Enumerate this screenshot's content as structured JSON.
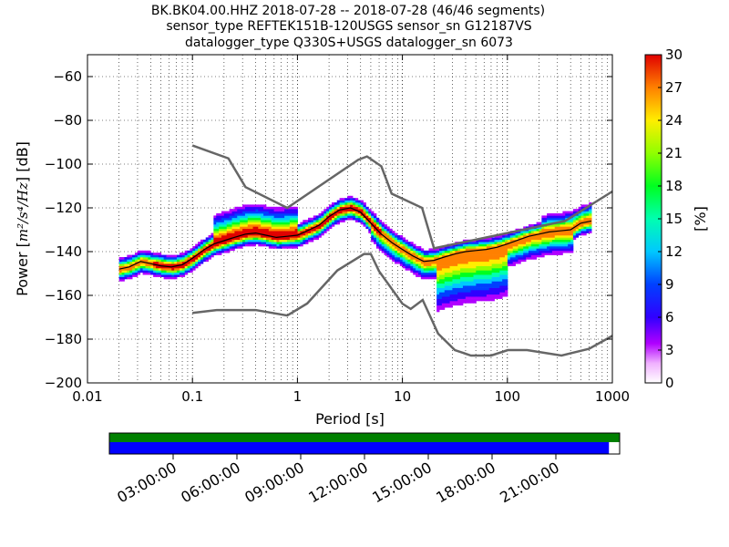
{
  "title_lines": [
    "BK.BK04.00.HHZ   2018-07-28 -- 2018-07-28  (46/46 segments)",
    "sensor_type REFTEK151B-120USGS sensor_sn G12187VS",
    "datalogger_type Q330S+USGS datalogger_sn 6073"
  ],
  "chart_data": {
    "type": "heatmap",
    "xlabel": "Period [s]",
    "ylabel_prefix": "Power [",
    "ylabel_math": "m²/s⁴/Hz",
    "ylabel_suffix": "] [dB]",
    "xscale": "log",
    "xlim": [
      0.01,
      1000
    ],
    "ylim": [
      -200,
      -50
    ],
    "x_ticks": [
      0.01,
      0.1,
      1,
      10,
      100,
      1000
    ],
    "x_tick_labels": [
      "0.01",
      "0.1",
      "1",
      "10",
      "100",
      "1000"
    ],
    "y_ticks": [
      -200,
      -180,
      -160,
      -140,
      -120,
      -100,
      -80,
      -60
    ],
    "y_tick_labels": [
      "−200",
      "−180",
      "−160",
      "−140",
      "−120",
      "−100",
      "−80",
      "−60"
    ],
    "grid": "dotted, minor and major",
    "colorbar": {
      "label": "[%]",
      "range": [
        0,
        30
      ],
      "ticks": [
        0,
        3,
        6,
        9,
        12,
        15,
        18,
        21,
        24,
        27,
        30
      ],
      "tick_labels": [
        "0",
        "3",
        "6",
        "9",
        "12",
        "15",
        "18",
        "21",
        "24",
        "27",
        "30"
      ]
    },
    "nhnm": {
      "name": "NHNM",
      "x": [
        0.1,
        0.22,
        0.32,
        0.8,
        3.8,
        4.6,
        6.3,
        7.9,
        15.4,
        20,
        354.8,
        1000
      ],
      "y": [
        -91.5,
        -97.4,
        -110.5,
        -120,
        -98,
        -96.5,
        -101,
        -113.5,
        -120,
        -138.5,
        -126,
        -112.5
      ]
    },
    "nlnm": {
      "name": "NLNM",
      "x": [
        0.1,
        0.17,
        0.4,
        0.8,
        1.24,
        2.4,
        4.3,
        5,
        6,
        10,
        12,
        15.6,
        21.9,
        31.6,
        45,
        70,
        101,
        154,
        328,
        600,
        1000
      ],
      "y": [
        -168,
        -166.7,
        -166.7,
        -169.2,
        -163.7,
        -148.6,
        -141.1,
        -141.1,
        -149,
        -163.8,
        -166.2,
        -162.1,
        -177.5,
        -185,
        -187.5,
        -187.5,
        -185,
        -185,
        -187.5,
        -184.4,
        -178.5
      ]
    },
    "mode_curve": {
      "x": [
        0.02,
        0.025,
        0.032,
        0.04,
        0.05,
        0.063,
        0.08,
        0.1,
        0.13,
        0.16,
        0.2,
        0.25,
        0.32,
        0.4,
        0.5,
        0.63,
        0.8,
        1,
        1.3,
        1.6,
        2,
        2.5,
        3.2,
        4,
        5,
        6.3,
        8,
        10,
        12.6,
        16,
        20,
        25,
        32,
        40,
        50,
        63,
        80,
        100,
        130,
        160,
        200,
        250,
        320,
        400,
        500,
        630
      ],
      "y": [
        -148,
        -147,
        -144.5,
        -145.5,
        -146.5,
        -147,
        -146,
        -143,
        -139,
        -136.5,
        -135,
        -133.5,
        -132,
        -131.5,
        -132.5,
        -133.5,
        -133,
        -132.5,
        -130,
        -128,
        -124,
        -121,
        -120,
        -122,
        -127,
        -132,
        -136,
        -139,
        -142,
        -144.5,
        -144,
        -142.5,
        -141,
        -140,
        -139.5,
        -139,
        -138,
        -136.5,
        -134.5,
        -133,
        -132,
        -131,
        -130.5,
        -130,
        -127,
        -126
      ]
    },
    "timeline": {
      "tick_labels": [
        "03:00:00",
        "06:00:00",
        "09:00:00",
        "12:00:00",
        "15:00:00",
        "18:00:00",
        "21:00:00"
      ],
      "tick_hours": [
        3,
        6,
        9,
        12,
        15,
        18,
        21
      ],
      "span_hours": 24,
      "data_coverage_fraction": 1.0,
      "psd_coverage_fraction": 0.979,
      "data_color": "#008000",
      "psd_color": "#0000ff"
    }
  }
}
